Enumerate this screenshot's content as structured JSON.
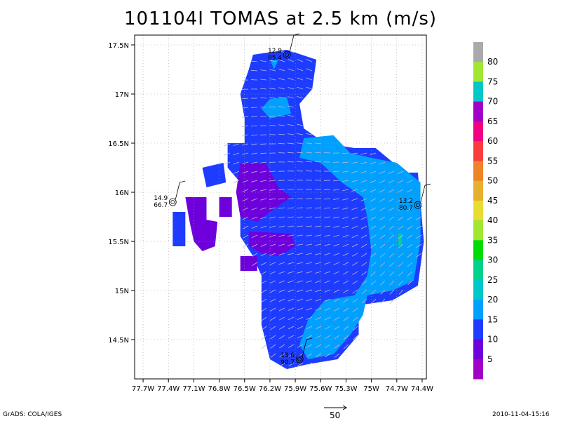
{
  "title": "101104I TOMAS at 2.5 km (m/s)",
  "footer": {
    "left": "GrADS: COLA/IGES",
    "right": "2010-11-04-15:16",
    "reference_vector_label": "50"
  },
  "chart_data": {
    "type": "heatmap",
    "title": "101104I TOMAS at 2.5 km (m/s)",
    "units": "m/s",
    "xlim": [
      -77.8,
      -74.35
    ],
    "ylim": [
      14.1,
      17.6
    ],
    "x_tick_labels": [
      "77.7W",
      "77.4W",
      "77.1W",
      "76.8W",
      "76.5W",
      "76.2W",
      "75.9W",
      "75.6W",
      "75.3W",
      "75W",
      "74.7W",
      "74.4W"
    ],
    "x_tick_values": [
      -77.7,
      -77.4,
      -77.1,
      -76.8,
      -76.5,
      -76.2,
      -75.9,
      -75.6,
      -75.3,
      -75.0,
      -74.7,
      -74.4
    ],
    "y_tick_labels": [
      "14.5N",
      "15N",
      "15.5N",
      "16N",
      "16.5N",
      "17N",
      "17.5N"
    ],
    "y_tick_values": [
      14.5,
      15.0,
      15.5,
      16.0,
      16.5,
      17.0,
      17.5
    ],
    "grid": true,
    "colorbar": {
      "levels": [
        5,
        10,
        15,
        20,
        25,
        30,
        35,
        40,
        45,
        50,
        55,
        60,
        65,
        70,
        75,
        80
      ],
      "colors": [
        "#a000c8",
        "#6e00dc",
        "#1e3cff",
        "#00a0ff",
        "#00c8c8",
        "#00d28c",
        "#00dc00",
        "#a0e632",
        "#e6dc32",
        "#e6af2d",
        "#f08228",
        "#fa3c3c",
        "#f00082",
        "#a000c8",
        "#00c8c8",
        "#a0e632",
        "#aaaaaa"
      ]
    },
    "regions": [
      {
        "value_class": "10-15",
        "color": "#1e3cff",
        "polygon": [
          [
            -76.4,
            17.4
          ],
          [
            -76.0,
            17.45
          ],
          [
            -75.65,
            17.35
          ],
          [
            -75.7,
            17.05
          ],
          [
            -75.85,
            16.9
          ],
          [
            -75.8,
            16.65
          ],
          [
            -75.55,
            16.5
          ],
          [
            -75.2,
            16.45
          ],
          [
            -74.95,
            16.45
          ],
          [
            -74.6,
            16.2
          ],
          [
            -74.45,
            16.2
          ],
          [
            -74.38,
            15.5
          ],
          [
            -74.45,
            15.05
          ],
          [
            -74.75,
            14.9
          ],
          [
            -75.15,
            14.85
          ],
          [
            -75.15,
            14.55
          ],
          [
            -75.4,
            14.3
          ],
          [
            -75.75,
            14.25
          ],
          [
            -76.0,
            14.2
          ],
          [
            -76.2,
            14.3
          ],
          [
            -76.3,
            14.65
          ],
          [
            -76.3,
            15.15
          ],
          [
            -76.4,
            15.35
          ],
          [
            -76.55,
            15.55
          ],
          [
            -76.55,
            15.85
          ],
          [
            -76.55,
            16.1
          ],
          [
            -76.7,
            16.25
          ],
          [
            -76.7,
            16.5
          ],
          [
            -76.5,
            16.5
          ],
          [
            -76.5,
            16.75
          ],
          [
            -76.55,
            17.0
          ],
          [
            -76.45,
            17.25
          ]
        ]
      },
      {
        "value_class": "10-15",
        "color": "#1e3cff",
        "polygon": [
          [
            -77.0,
            16.25
          ],
          [
            -76.75,
            16.3
          ],
          [
            -76.72,
            16.1
          ],
          [
            -76.95,
            16.05
          ]
        ]
      },
      {
        "value_class": "10-15",
        "color": "#1e3cff",
        "polygon": [
          [
            -77.35,
            15.8
          ],
          [
            -77.2,
            15.8
          ],
          [
            -77.2,
            15.45
          ],
          [
            -77.35,
            15.45
          ]
        ]
      },
      {
        "value_class": "15-20",
        "color": "#00a0ff",
        "polygon": [
          [
            -75.8,
            16.55
          ],
          [
            -75.45,
            16.58
          ],
          [
            -75.25,
            16.4
          ],
          [
            -75.0,
            16.35
          ],
          [
            -74.7,
            16.3
          ],
          [
            -74.42,
            16.1
          ],
          [
            -74.42,
            15.5
          ],
          [
            -74.5,
            15.1
          ],
          [
            -74.75,
            15.0
          ],
          [
            -75.05,
            14.95
          ],
          [
            -75.1,
            14.75
          ],
          [
            -75.25,
            14.55
          ],
          [
            -75.45,
            14.35
          ],
          [
            -75.75,
            14.3
          ],
          [
            -75.85,
            14.45
          ],
          [
            -75.75,
            14.7
          ],
          [
            -75.55,
            14.9
          ],
          [
            -75.2,
            14.95
          ],
          [
            -75.05,
            15.15
          ],
          [
            -75.0,
            15.4
          ],
          [
            -75.05,
            15.75
          ],
          [
            -75.1,
            15.95
          ],
          [
            -75.35,
            16.1
          ],
          [
            -75.6,
            16.3
          ],
          [
            -75.85,
            16.35
          ]
        ]
      },
      {
        "value_class": "15-20",
        "color": "#00a0ff",
        "polygon": [
          [
            -76.2,
            16.95
          ],
          [
            -76.0,
            16.97
          ],
          [
            -75.95,
            16.8
          ],
          [
            -76.2,
            16.75
          ],
          [
            -76.3,
            16.85
          ]
        ]
      },
      {
        "value_class": "15-20",
        "color": "#00a0ff",
        "polygon": [
          [
            -76.2,
            17.35
          ],
          [
            -76.1,
            17.35
          ],
          [
            -76.15,
            17.25
          ]
        ]
      },
      {
        "value_class": "25-30",
        "color": "#00d28c",
        "polygon": [
          [
            -74.68,
            15.58
          ],
          [
            -74.64,
            15.58
          ],
          [
            -74.64,
            15.45
          ],
          [
            -74.68,
            15.45
          ]
        ]
      },
      {
        "value_class": "5-10",
        "color": "#6e00dc",
        "polygon": [
          [
            -76.55,
            16.3
          ],
          [
            -76.25,
            16.3
          ],
          [
            -76.1,
            16.05
          ],
          [
            -75.95,
            15.95
          ],
          [
            -76.2,
            15.8
          ],
          [
            -76.35,
            15.7
          ],
          [
            -76.55,
            15.75
          ],
          [
            -76.6,
            16.0
          ]
        ]
      },
      {
        "value_class": "5-10",
        "color": "#6e00dc",
        "polygon": [
          [
            -76.45,
            15.6
          ],
          [
            -75.95,
            15.58
          ],
          [
            -75.9,
            15.45
          ],
          [
            -76.1,
            15.35
          ],
          [
            -76.3,
            15.38
          ],
          [
            -76.45,
            15.45
          ]
        ]
      },
      {
        "value_class": "5-10",
        "color": "#6e00dc",
        "polygon": [
          [
            -76.55,
            15.35
          ],
          [
            -76.35,
            15.35
          ],
          [
            -76.35,
            15.2
          ],
          [
            -76.55,
            15.2
          ]
        ]
      },
      {
        "value_class": "5-10",
        "color": "#6e00dc",
        "polygon": [
          [
            -77.2,
            15.95
          ],
          [
            -76.95,
            15.95
          ],
          [
            -76.95,
            15.72
          ],
          [
            -76.82,
            15.7
          ],
          [
            -76.85,
            15.45
          ],
          [
            -77.0,
            15.4
          ],
          [
            -77.1,
            15.5
          ],
          [
            -77.15,
            15.7
          ]
        ]
      },
      {
        "value_class": "5-10",
        "color": "#6e00dc",
        "polygon": [
          [
            -76.8,
            15.95
          ],
          [
            -76.65,
            15.95
          ],
          [
            -76.65,
            15.75
          ],
          [
            -76.8,
            15.75
          ]
        ]
      }
    ],
    "flight_obs": [
      {
        "lon": -76.0,
        "lat": 17.4,
        "label1": "12.9",
        "label2": "85.4"
      },
      {
        "lon": -77.35,
        "lat": 15.9,
        "label1": "14.9",
        "label2": "66.7"
      },
      {
        "lon": -74.45,
        "lat": 15.87,
        "label1": "13.2",
        "label2": "80.7"
      },
      {
        "lon": -75.85,
        "lat": 14.3,
        "label1": "13.6",
        "label2": "90.7"
      }
    ],
    "vector_field": "mostly easterly/southeasterly flow at 10-20 m/s"
  }
}
